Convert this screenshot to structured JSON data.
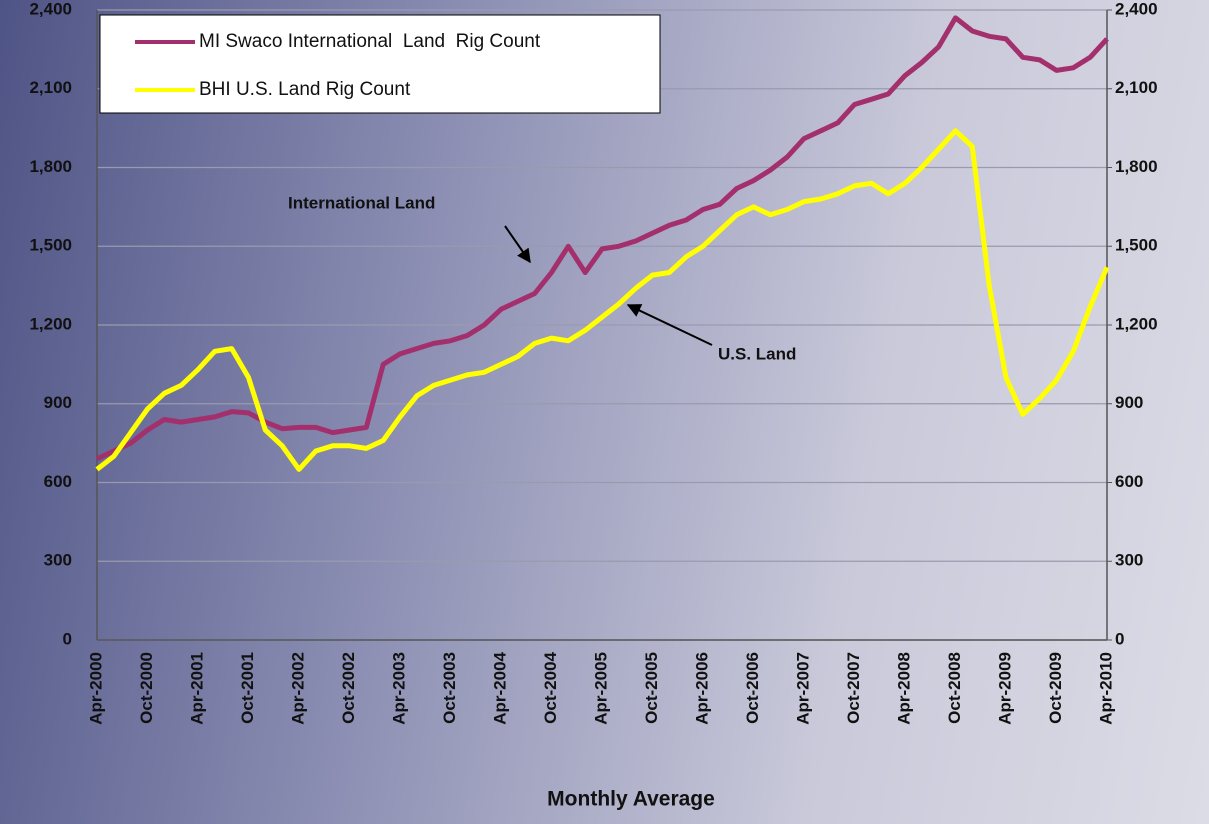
{
  "chart_data": {
    "type": "line",
    "x_label": "Monthly Average",
    "categories": [
      "Apr-2000",
      null,
      null,
      "Oct-2000",
      null,
      null,
      "Apr-2001",
      null,
      null,
      "Oct-2001",
      null,
      null,
      "Apr-2002",
      null,
      null,
      "Oct-2002",
      null,
      null,
      "Apr-2003",
      null,
      null,
      "Oct-2003",
      null,
      null,
      "Apr-2004",
      null,
      null,
      "Oct-2004",
      null,
      null,
      "Apr-2005",
      null,
      null,
      "Oct-2005",
      null,
      null,
      "Apr-2006",
      null,
      null,
      "Oct-2006",
      null,
      null,
      "Apr-2007",
      null,
      null,
      "Oct-2007",
      null,
      null,
      "Apr-2008",
      null,
      null,
      "Oct-2008",
      null,
      null,
      "Apr-2009",
      null,
      null,
      "Oct-2009",
      null,
      null,
      "Apr-2010"
    ],
    "series": [
      {
        "name": "MI Swaco International  Land  Rig Count",
        "color": "#a3306c",
        "values": [
          690,
          720,
          750,
          800,
          840,
          830,
          840,
          850,
          870,
          865,
          830,
          805,
          810,
          810,
          790,
          800,
          810,
          1050,
          1090,
          1110,
          1130,
          1140,
          1160,
          1200,
          1260,
          1290,
          1320,
          1400,
          1500,
          1400,
          1490,
          1500,
          1520,
          1550,
          1580,
          1600,
          1640,
          1660,
          1720,
          1750,
          1790,
          1840,
          1910,
          1940,
          1970,
          2040,
          2060,
          2080,
          2150,
          2200,
          2260,
          2370,
          2320,
          2300,
          2290,
          2220,
          2210,
          2170,
          2180,
          2220,
          2290
        ]
      },
      {
        "name": "BHI U.S. Land Rig Count",
        "color": "#ffff00",
        "values": [
          650,
          700,
          790,
          880,
          940,
          970,
          1030,
          1100,
          1110,
          1000,
          800,
          740,
          650,
          720,
          740,
          740,
          730,
          760,
          850,
          930,
          970,
          990,
          1010,
          1020,
          1050,
          1080,
          1130,
          1150,
          1140,
          1180,
          1230,
          1280,
          1340,
          1390,
          1400,
          1460,
          1500,
          1560,
          1620,
          1650,
          1620,
          1640,
          1670,
          1680,
          1700,
          1730,
          1740,
          1700,
          1740,
          1800,
          1870,
          1940,
          1880,
          1350,
          1000,
          860,
          920,
          990,
          1100,
          1270,
          1420
        ]
      }
    ],
    "ylim": [
      0,
      2400
    ],
    "yticks": [
      0,
      300,
      600,
      900,
      {
        "value": 1200,
        "label": "1,200"
      },
      {
        "value": 1500,
        "label": "1,500"
      },
      {
        "value": 1800,
        "label": "1,800"
      },
      {
        "value": 2100,
        "label": "2,100"
      },
      {
        "value": 2400,
        "label": "2,400"
      }
    ],
    "y2lim": [
      0,
      2400
    ],
    "y2ticks": [
      0,
      300,
      600,
      900,
      {
        "value": 1200,
        "label": "1,200"
      },
      {
        "value": 1500,
        "label": "1,500"
      },
      {
        "value": 1800,
        "label": "1,800"
      },
      {
        "value": 2100,
        "label": "2,100"
      },
      {
        "value": 2400,
        "label": "2,400"
      }
    ],
    "grid": true,
    "annotations": [
      "International Land",
      "U.S. Land"
    ]
  }
}
